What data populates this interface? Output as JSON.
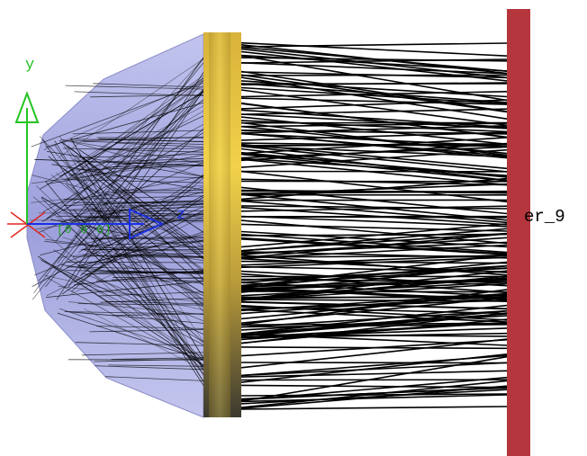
{
  "scene": {
    "labels": {
      "axis_y": "y",
      "axis_z": "z",
      "origin": "[0 0 0]",
      "detector": "er_9"
    },
    "colors": {
      "background": "#ffffff",
      "source_body": "#a9abe0",
      "source_edge": "#8a8cc8",
      "lens_light": "#f2d24a",
      "lens_dark": "#3c3a30",
      "detector": "#b5363d",
      "rays": "#000000",
      "axis_y": "#22c422",
      "axis_z": "#1a30e6",
      "axis_x": "#e0261e",
      "origin_text": "#1fa51f"
    }
  }
}
